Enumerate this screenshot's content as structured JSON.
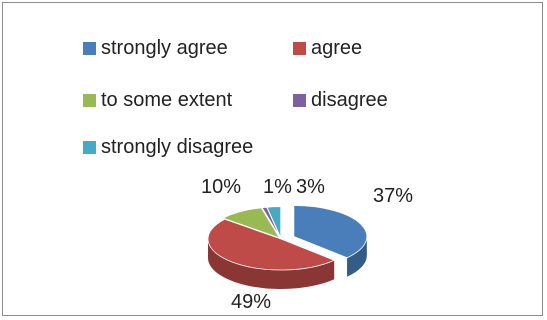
{
  "chart_data": {
    "type": "pie",
    "title": "",
    "three_d": true,
    "legend_placement": "top",
    "slices": [
      {
        "label": "strongly agree",
        "value": 37,
        "display": "37%",
        "color": "#4a7ebb"
      },
      {
        "label": "agree",
        "value": 49,
        "display": "49%",
        "color": "#be4b48"
      },
      {
        "label": "to some extent",
        "value": 10,
        "display": "10%",
        "color": "#98b954"
      },
      {
        "label": "disagree",
        "value": 1,
        "display": "1%",
        "color": "#7d60a0"
      },
      {
        "label": "strongly disagree",
        "value": 3,
        "display": "3%",
        "color": "#46aac5"
      }
    ]
  }
}
